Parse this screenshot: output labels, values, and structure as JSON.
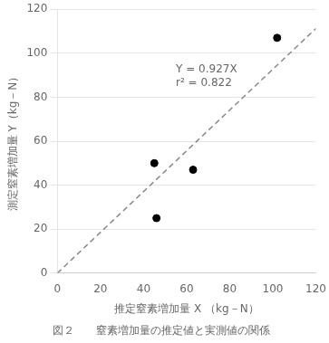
{
  "chart_data": {
    "type": "scatter",
    "title": "図２　　窒素増加量の推定値と実測値の関係",
    "x_label": "推定窒素増加量 X （kg－N）",
    "y_label": "測定窒素増加量 Y（kg－N）",
    "series": [
      {
        "type": "line",
        "line_style": "dashed",
        "color": "#888888",
        "x": [
          0,
          120
        ],
        "values": [
          0,
          111.24
        ]
      },
      {
        "type": "scatter",
        "color": "#000000",
        "x": [
          45,
          46,
          63,
          102
        ],
        "values": [
          50,
          25,
          47,
          107
        ]
      }
    ],
    "annotations": [
      {
        "x": 55,
        "y": 95,
        "text": [
          "Y = 0.927X",
          "r² = 0.822"
        ]
      }
    ],
    "xlim": [
      0,
      120
    ],
    "ylim": [
      0,
      120
    ],
    "xticks": [
      0,
      20,
      40,
      60,
      80,
      100,
      120
    ],
    "yticks": [
      0,
      20,
      40,
      60,
      80,
      100,
      120
    ],
    "grid": "y"
  }
}
